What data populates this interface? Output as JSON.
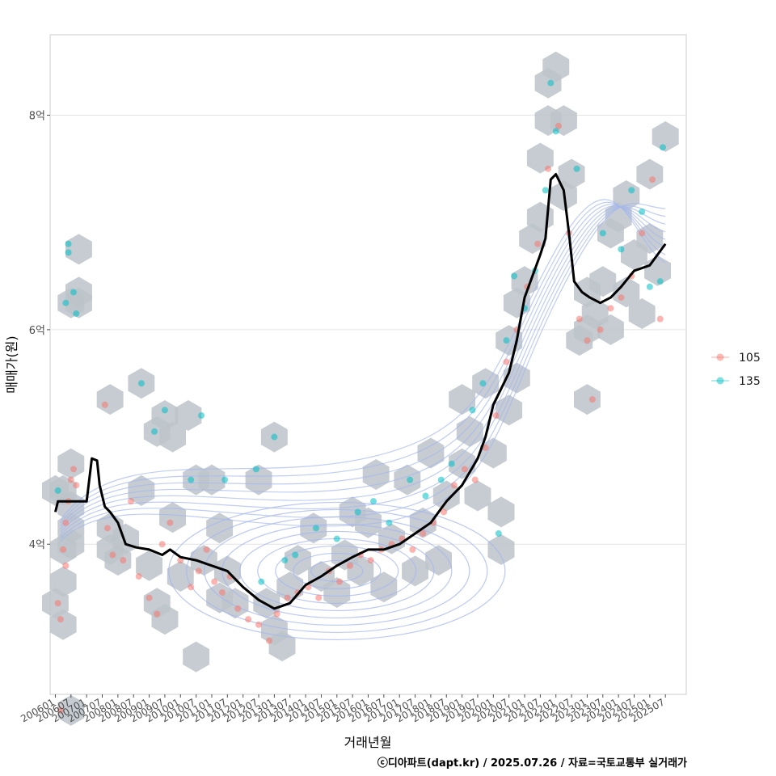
{
  "chart_data": {
    "type": "scatter",
    "xlabel": "거래년월",
    "ylabel": "매매가(원)",
    "caption": "ⓒ디아파트(dapt.kr) / 2025.07.26 / 자료=국토교통부 실거래가",
    "xlim": [
      "2005-11",
      "2026-03"
    ],
    "ylim": [
      2.6,
      8.75
    ],
    "y_unit_label": "억",
    "y_ticks": [
      4,
      6,
      8
    ],
    "y_tick_labels": [
      "4억",
      "6억",
      "8억"
    ],
    "x_ticks": [
      "2006-01",
      "2006-07",
      "2007-01",
      "2007-07",
      "2008-01",
      "2008-07",
      "2009-01",
      "2009-07",
      "2010-01",
      "2010-07",
      "2011-01",
      "2011-07",
      "2012-01",
      "2012-07",
      "2013-01",
      "2013-07",
      "2014-01",
      "2014-07",
      "2015-01",
      "2015-07",
      "2016-01",
      "2016-07",
      "2017-01",
      "2017-07",
      "2018-01",
      "2018-07",
      "2019-01",
      "2019-07",
      "2020-01",
      "2020-07",
      "2021-01",
      "2021-07",
      "2022-01",
      "2022-07",
      "2023-01",
      "2023-07",
      "2024-01",
      "2024-07",
      "2025-01",
      "2025-07"
    ],
    "x_tick_labels": [
      "200601",
      "200607",
      "200701",
      "200707",
      "200801",
      "200807",
      "200901",
      "200907",
      "201001",
      "201007",
      "201101",
      "201107",
      "201201",
      "201207",
      "201301",
      "201307",
      "201401",
      "201407",
      "201501",
      "201507",
      "201601",
      "201607",
      "201701",
      "201707",
      "201801",
      "201807",
      "201901",
      "201907",
      "202001",
      "202007",
      "202101",
      "202107",
      "202201",
      "202207",
      "202301",
      "202307",
      "202401",
      "202407",
      "202501",
      "202507"
    ],
    "grid": true,
    "legend_position": "right",
    "colors": {
      "s105": "#f8766d",
      "s135": "#00bfc4",
      "hex": "#bcc3ca",
      "contour": "#a4b6f0",
      "median": "#000000"
    },
    "series": [
      {
        "name": "105",
        "color": "#f8766d",
        "points": [
          {
            "x": "2006-02",
            "y": 3.45
          },
          {
            "x": "2006-03",
            "y": 3.3
          },
          {
            "x": "2006-04",
            "y": 3.95
          },
          {
            "x": "2006-05",
            "y": 4.2
          },
          {
            "x": "2006-06",
            "y": 4.4
          },
          {
            "x": "2006-07",
            "y": 4.6
          },
          {
            "x": "2006-08",
            "y": 4.7
          },
          {
            "x": "2006-09",
            "y": 4.55
          },
          {
            "x": "2006-03",
            "y": 2.45
          },
          {
            "x": "2006-05",
            "y": 3.8
          },
          {
            "x": "2007-08",
            "y": 5.3
          },
          {
            "x": "2007-09",
            "y": 4.15
          },
          {
            "x": "2007-11",
            "y": 3.9
          },
          {
            "x": "2008-03",
            "y": 3.85
          },
          {
            "x": "2008-06",
            "y": 4.4
          },
          {
            "x": "2008-09",
            "y": 3.7
          },
          {
            "x": "2009-01",
            "y": 3.5
          },
          {
            "x": "2009-04",
            "y": 3.35
          },
          {
            "x": "2009-06",
            "y": 4.0
          },
          {
            "x": "2009-09",
            "y": 4.2
          },
          {
            "x": "2010-01",
            "y": 3.85
          },
          {
            "x": "2010-05",
            "y": 3.6
          },
          {
            "x": "2010-08",
            "y": 3.75
          },
          {
            "x": "2010-11",
            "y": 3.95
          },
          {
            "x": "2011-02",
            "y": 3.65
          },
          {
            "x": "2011-05",
            "y": 3.55
          },
          {
            "x": "2011-08",
            "y": 3.7
          },
          {
            "x": "2011-11",
            "y": 3.4
          },
          {
            "x": "2012-03",
            "y": 3.3
          },
          {
            "x": "2012-07",
            "y": 3.25
          },
          {
            "x": "2012-11",
            "y": 3.1
          },
          {
            "x": "2013-02",
            "y": 3.35
          },
          {
            "x": "2013-06",
            "y": 3.5
          },
          {
            "x": "2013-10",
            "y": 3.55
          },
          {
            "x": "2014-02",
            "y": 3.6
          },
          {
            "x": "2014-06",
            "y": 3.5
          },
          {
            "x": "2014-10",
            "y": 3.75
          },
          {
            "x": "2015-02",
            "y": 3.65
          },
          {
            "x": "2015-06",
            "y": 3.8
          },
          {
            "x": "2015-10",
            "y": 3.9
          },
          {
            "x": "2016-02",
            "y": 3.85
          },
          {
            "x": "2016-06",
            "y": 3.95
          },
          {
            "x": "2016-10",
            "y": 4.0
          },
          {
            "x": "2017-02",
            "y": 4.05
          },
          {
            "x": "2017-06",
            "y": 3.95
          },
          {
            "x": "2017-10",
            "y": 4.1
          },
          {
            "x": "2018-02",
            "y": 4.2
          },
          {
            "x": "2018-06",
            "y": 4.3
          },
          {
            "x": "2018-10",
            "y": 4.55
          },
          {
            "x": "2019-02",
            "y": 4.7
          },
          {
            "x": "2019-06",
            "y": 4.6
          },
          {
            "x": "2019-10",
            "y": 4.9
          },
          {
            "x": "2020-02",
            "y": 5.2
          },
          {
            "x": "2020-06",
            "y": 5.7
          },
          {
            "x": "2020-10",
            "y": 6.0
          },
          {
            "x": "2021-02",
            "y": 6.4
          },
          {
            "x": "2021-06",
            "y": 6.8
          },
          {
            "x": "2021-10",
            "y": 7.5
          },
          {
            "x": "2022-02",
            "y": 7.9
          },
          {
            "x": "2022-06",
            "y": 6.9
          },
          {
            "x": "2022-10",
            "y": 6.1
          },
          {
            "x": "2023-01",
            "y": 5.9
          },
          {
            "x": "2023-03",
            "y": 5.35
          },
          {
            "x": "2023-06",
            "y": 6.0
          },
          {
            "x": "2023-10",
            "y": 6.2
          },
          {
            "x": "2024-02",
            "y": 6.3
          },
          {
            "x": "2024-06",
            "y": 6.5
          },
          {
            "x": "2024-10",
            "y": 6.9
          },
          {
            "x": "2025-02",
            "y": 7.4
          },
          {
            "x": "2025-05",
            "y": 6.1
          }
        ]
      },
      {
        "name": "135",
        "color": "#00bfc4",
        "points": [
          {
            "x": "2006-06",
            "y": 6.8
          },
          {
            "x": "2006-06",
            "y": 6.72
          },
          {
            "x": "2006-05",
            "y": 6.25
          },
          {
            "x": "2006-09",
            "y": 6.15
          },
          {
            "x": "2006-08",
            "y": 6.35
          },
          {
            "x": "2006-02",
            "y": 4.5
          },
          {
            "x": "2008-10",
            "y": 5.5
          },
          {
            "x": "2009-03",
            "y": 5.05
          },
          {
            "x": "2009-07",
            "y": 5.25
          },
          {
            "x": "2010-05",
            "y": 4.6
          },
          {
            "x": "2010-09",
            "y": 5.2
          },
          {
            "x": "2011-06",
            "y": 4.6
          },
          {
            "x": "2012-06",
            "y": 4.7
          },
          {
            "x": "2012-08",
            "y": 3.65
          },
          {
            "x": "2013-01",
            "y": 5.0
          },
          {
            "x": "2013-05",
            "y": 3.85
          },
          {
            "x": "2013-09",
            "y": 3.9
          },
          {
            "x": "2014-05",
            "y": 4.15
          },
          {
            "x": "2015-01",
            "y": 4.05
          },
          {
            "x": "2015-09",
            "y": 4.3
          },
          {
            "x": "2016-03",
            "y": 4.4
          },
          {
            "x": "2016-09",
            "y": 4.2
          },
          {
            "x": "2017-05",
            "y": 4.6
          },
          {
            "x": "2017-11",
            "y": 4.45
          },
          {
            "x": "2018-05",
            "y": 4.6
          },
          {
            "x": "2018-09",
            "y": 4.75
          },
          {
            "x": "2019-05",
            "y": 5.25
          },
          {
            "x": "2019-09",
            "y": 5.5
          },
          {
            "x": "2020-03",
            "y": 4.1
          },
          {
            "x": "2020-06",
            "y": 5.9
          },
          {
            "x": "2020-09",
            "y": 6.5
          },
          {
            "x": "2021-01",
            "y": 6.2
          },
          {
            "x": "2021-05",
            "y": 6.55
          },
          {
            "x": "2021-09",
            "y": 7.3
          },
          {
            "x": "2022-01",
            "y": 7.85
          },
          {
            "x": "2021-11",
            "y": 8.3
          },
          {
            "x": "2022-09",
            "y": 7.5
          },
          {
            "x": "2023-07",
            "y": 6.9
          },
          {
            "x": "2024-02",
            "y": 6.75
          },
          {
            "x": "2024-06",
            "y": 7.3
          },
          {
            "x": "2024-10",
            "y": 7.1
          },
          {
            "x": "2025-01",
            "y": 6.4
          },
          {
            "x": "2025-05",
            "y": 6.45
          },
          {
            "x": "2025-06",
            "y": 7.7
          }
        ]
      }
    ],
    "hexbins": [
      {
        "x": "2006-01",
        "y": 4.5
      },
      {
        "x": "2006-04",
        "y": 4.5
      },
      {
        "x": "2006-01",
        "y": 3.45
      },
      {
        "x": "2006-04",
        "y": 3.25
      },
      {
        "x": "2006-04",
        "y": 3.65
      },
      {
        "x": "2006-04",
        "y": 3.95
      },
      {
        "x": "2006-07",
        "y": 4.15
      },
      {
        "x": "2006-07",
        "y": 4.75
      },
      {
        "x": "2006-07",
        "y": 4.35
      },
      {
        "x": "2006-07",
        "y": 4.0
      },
      {
        "x": "2006-07",
        "y": 2.45
      },
      {
        "x": "2006-07",
        "y": 6.25
      },
      {
        "x": "2006-10",
        "y": 6.25
      },
      {
        "x": "2006-10",
        "y": 6.35
      },
      {
        "x": "2006-10",
        "y": 6.75
      },
      {
        "x": "2007-10",
        "y": 5.35
      },
      {
        "x": "2007-10",
        "y": 4.15
      },
      {
        "x": "2007-10",
        "y": 3.95
      },
      {
        "x": "2008-01",
        "y": 3.85
      },
      {
        "x": "2008-04",
        "y": 4.05
      },
      {
        "x": "2008-10",
        "y": 5.5
      },
      {
        "x": "2008-10",
        "y": 4.5
      },
      {
        "x": "2009-01",
        "y": 3.8
      },
      {
        "x": "2009-04",
        "y": 3.45
      },
      {
        "x": "2009-04",
        "y": 5.05
      },
      {
        "x": "2009-07",
        "y": 5.2
      },
      {
        "x": "2009-07",
        "y": 3.3
      },
      {
        "x": "2009-10",
        "y": 5.0
      },
      {
        "x": "2009-10",
        "y": 4.25
      },
      {
        "x": "2010-01",
        "y": 3.7
      },
      {
        "x": "2010-04",
        "y": 5.2
      },
      {
        "x": "2010-07",
        "y": 2.95
      },
      {
        "x": "2010-07",
        "y": 4.6
      },
      {
        "x": "2010-10",
        "y": 3.85
      },
      {
        "x": "2011-01",
        "y": 4.6
      },
      {
        "x": "2011-04",
        "y": 3.5
      },
      {
        "x": "2011-04",
        "y": 4.15
      },
      {
        "x": "2011-07",
        "y": 3.75
      },
      {
        "x": "2011-10",
        "y": 3.45
      },
      {
        "x": "2012-07",
        "y": 4.6
      },
      {
        "x": "2012-10",
        "y": 3.45
      },
      {
        "x": "2013-01",
        "y": 3.2
      },
      {
        "x": "2013-01",
        "y": 5.0
      },
      {
        "x": "2013-04",
        "y": 3.05
      },
      {
        "x": "2013-07",
        "y": 3.6
      },
      {
        "x": "2013-10",
        "y": 3.85
      },
      {
        "x": "2014-04",
        "y": 4.15
      },
      {
        "x": "2014-07",
        "y": 3.7
      },
      {
        "x": "2015-01",
        "y": 3.55
      },
      {
        "x": "2015-04",
        "y": 3.9
      },
      {
        "x": "2015-07",
        "y": 4.3
      },
      {
        "x": "2015-10",
        "y": 3.75
      },
      {
        "x": "2016-01",
        "y": 4.2
      },
      {
        "x": "2016-04",
        "y": 4.65
      },
      {
        "x": "2016-07",
        "y": 3.6
      },
      {
        "x": "2016-10",
        "y": 4.05
      },
      {
        "x": "2017-04",
        "y": 4.6
      },
      {
        "x": "2017-07",
        "y": 3.75
      },
      {
        "x": "2017-10",
        "y": 4.2
      },
      {
        "x": "2018-01",
        "y": 4.85
      },
      {
        "x": "2018-04",
        "y": 3.85
      },
      {
        "x": "2018-07",
        "y": 4.45
      },
      {
        "x": "2019-01",
        "y": 4.75
      },
      {
        "x": "2019-01",
        "y": 5.35
      },
      {
        "x": "2019-04",
        "y": 5.05
      },
      {
        "x": "2019-07",
        "y": 4.45
      },
      {
        "x": "2019-10",
        "y": 5.5
      },
      {
        "x": "2020-01",
        "y": 4.85
      },
      {
        "x": "2020-04",
        "y": 4.3
      },
      {
        "x": "2020-04",
        "y": 3.95
      },
      {
        "x": "2020-07",
        "y": 5.25
      },
      {
        "x": "2020-07",
        "y": 5.9
      },
      {
        "x": "2020-10",
        "y": 6.25
      },
      {
        "x": "2020-10",
        "y": 5.55
      },
      {
        "x": "2021-01",
        "y": 6.45
      },
      {
        "x": "2021-04",
        "y": 6.85
      },
      {
        "x": "2021-07",
        "y": 7.05
      },
      {
        "x": "2021-07",
        "y": 7.6
      },
      {
        "x": "2021-10",
        "y": 7.95
      },
      {
        "x": "2021-10",
        "y": 8.3
      },
      {
        "x": "2022-01",
        "y": 8.45
      },
      {
        "x": "2022-04",
        "y": 7.95
      },
      {
        "x": "2022-04",
        "y": 7.25
      },
      {
        "x": "2022-07",
        "y": 7.45
      },
      {
        "x": "2022-10",
        "y": 5.9
      },
      {
        "x": "2023-01",
        "y": 5.35
      },
      {
        "x": "2023-01",
        "y": 6.0
      },
      {
        "x": "2023-01",
        "y": 6.35
      },
      {
        "x": "2023-04",
        "y": 6.15
      },
      {
        "x": "2023-07",
        "y": 6.45
      },
      {
        "x": "2023-10",
        "y": 6.0
      },
      {
        "x": "2023-10",
        "y": 6.9
      },
      {
        "x": "2024-01",
        "y": 7.05
      },
      {
        "x": "2024-04",
        "y": 7.25
      },
      {
        "x": "2024-04",
        "y": 6.35
      },
      {
        "x": "2024-07",
        "y": 6.7
      },
      {
        "x": "2024-10",
        "y": 6.15
      },
      {
        "x": "2025-01",
        "y": 7.45
      },
      {
        "x": "2025-01",
        "y": 6.85
      },
      {
        "x": "2025-04",
        "y": 6.55
      },
      {
        "x": "2025-07",
        "y": 7.8
      }
    ],
    "median_line": [
      {
        "x": "2006-01",
        "y": 4.3
      },
      {
        "x": "2006-02",
        "y": 4.4
      },
      {
        "x": "2006-06",
        "y": 4.4
      },
      {
        "x": "2007-01",
        "y": 4.4
      },
      {
        "x": "2007-03",
        "y": 4.8
      },
      {
        "x": "2007-05",
        "y": 4.78
      },
      {
        "x": "2007-06",
        "y": 4.55
      },
      {
        "x": "2007-08",
        "y": 4.35
      },
      {
        "x": "2007-10",
        "y": 4.3
      },
      {
        "x": "2008-01",
        "y": 4.2
      },
      {
        "x": "2008-04",
        "y": 4.0
      },
      {
        "x": "2008-08",
        "y": 3.97
      },
      {
        "x": "2009-01",
        "y": 3.95
      },
      {
        "x": "2009-06",
        "y": 3.9
      },
      {
        "x": "2009-09",
        "y": 3.95
      },
      {
        "x": "2010-01",
        "y": 3.88
      },
      {
        "x": "2010-07",
        "y": 3.85
      },
      {
        "x": "2011-01",
        "y": 3.8
      },
      {
        "x": "2011-07",
        "y": 3.75
      },
      {
        "x": "2012-01",
        "y": 3.6
      },
      {
        "x": "2012-07",
        "y": 3.48
      },
      {
        "x": "2013-01",
        "y": 3.4
      },
      {
        "x": "2013-07",
        "y": 3.45
      },
      {
        "x": "2014-01",
        "y": 3.62
      },
      {
        "x": "2014-07",
        "y": 3.7
      },
      {
        "x": "2015-01",
        "y": 3.8
      },
      {
        "x": "2015-07",
        "y": 3.88
      },
      {
        "x": "2016-01",
        "y": 3.95
      },
      {
        "x": "2016-07",
        "y": 3.95
      },
      {
        "x": "2017-01",
        "y": 4.0
      },
      {
        "x": "2017-07",
        "y": 4.1
      },
      {
        "x": "2018-01",
        "y": 4.2
      },
      {
        "x": "2018-07",
        "y": 4.4
      },
      {
        "x": "2019-01",
        "y": 4.55
      },
      {
        "x": "2019-07",
        "y": 4.8
      },
      {
        "x": "2019-10",
        "y": 5.0
      },
      {
        "x": "2020-01",
        "y": 5.3
      },
      {
        "x": "2020-07",
        "y": 5.6
      },
      {
        "x": "2020-10",
        "y": 5.9
      },
      {
        "x": "2021-01",
        "y": 6.3
      },
      {
        "x": "2021-07",
        "y": 6.7
      },
      {
        "x": "2021-09",
        "y": 6.85
      },
      {
        "x": "2021-11",
        "y": 7.4
      },
      {
        "x": "2022-01",
        "y": 7.45
      },
      {
        "x": "2022-04",
        "y": 7.3
      },
      {
        "x": "2022-06",
        "y": 6.9
      },
      {
        "x": "2022-08",
        "y": 6.45
      },
      {
        "x": "2022-11",
        "y": 6.35
      },
      {
        "x": "2023-02",
        "y": 6.3
      },
      {
        "x": "2023-06",
        "y": 6.25
      },
      {
        "x": "2023-10",
        "y": 6.3
      },
      {
        "x": "2024-02",
        "y": 6.4
      },
      {
        "x": "2024-07",
        "y": 6.55
      },
      {
        "x": "2025-01",
        "y": 6.6
      },
      {
        "x": "2025-04",
        "y": 6.7
      },
      {
        "x": "2025-07",
        "y": 6.8
      }
    ],
    "density_center": {
      "x": "2015-01",
      "y": 3.75
    }
  }
}
